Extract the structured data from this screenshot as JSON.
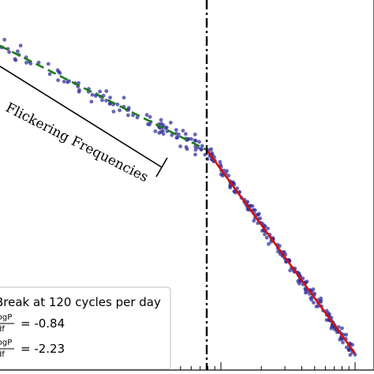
{
  "chart_data": {
    "type": "scatter",
    "title": "",
    "xlabel": "",
    "ylabel": "",
    "scale": "log-log",
    "grid": false,
    "break_frequency": 120,
    "break_unit": "cycles per day",
    "annotation": "Flickering Frequencies",
    "colors": {
      "points": "#2e2e9a",
      "fit_low": "#1f7a1f",
      "fit_high": "#d01010",
      "break_line": "#000000"
    },
    "series": [
      {
        "role": "points",
        "point_count": 320
      },
      {
        "role": "fit_low",
        "slope": -0.84,
        "style": "dashed"
      },
      {
        "role": "fit_high",
        "slope": -2.23,
        "style": "solid"
      }
    ],
    "legend": {
      "placement": "bottom-left",
      "title": "Break at 120 cycles per day",
      "entries": [
        {
          "frac_num": "logP",
          "frac_den": "df",
          "value": "= -0.84"
        },
        {
          "frac_num": "logP",
          "frac_den": "df",
          "value": "= -2.23"
        }
      ]
    }
  }
}
